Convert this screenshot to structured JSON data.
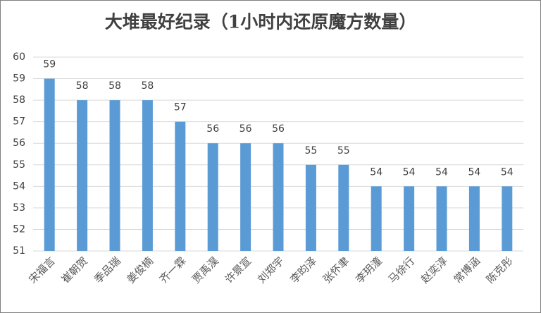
{
  "chart_data": {
    "type": "bar",
    "title": "大堆最好纪录（1小时内还原魔方数量）",
    "categories": [
      "宋福言",
      "崔朝贺",
      "季品瑞",
      "姜俊楠",
      "齐一霖",
      "贾禹淏",
      "许景宣",
      "刘郑宇",
      "李昀泽",
      "张怀聿",
      "李玥潼",
      "马徐行",
      "赵奕淳",
      "常博涵",
      "陈克彤"
    ],
    "values": [
      59,
      58,
      58,
      58,
      57,
      56,
      56,
      56,
      55,
      55,
      54,
      54,
      54,
      54,
      54
    ],
    "color": "#5b9bd5",
    "ylim": [
      51,
      60
    ],
    "yticks": [
      51,
      52,
      53,
      54,
      55,
      56,
      57,
      58,
      59,
      60
    ],
    "grid": true
  }
}
